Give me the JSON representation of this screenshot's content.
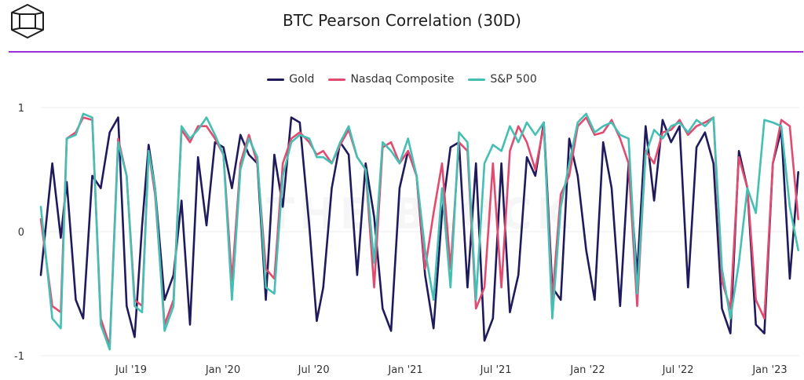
{
  "header": {
    "logo_icon": "cube-logo-icon",
    "title": "BTC Pearson Correlation (30D)",
    "rule_color": "#9b30d9"
  },
  "watermark": "THE BLOCK",
  "legend": [
    {
      "name": "Gold",
      "color": "#1f1a5c"
    },
    {
      "name": "Nasdaq Composite",
      "color": "#e34a6f"
    },
    {
      "name": "S&P 500",
      "color": "#45bfb3"
    }
  ],
  "chart_data": {
    "type": "line",
    "title": "BTC Pearson Correlation (30D)",
    "xlabel": "",
    "ylabel": "",
    "ylim": [
      -1,
      1
    ],
    "yticks": [
      {
        "value": 1,
        "label": "1"
      },
      {
        "value": 0,
        "label": "0"
      },
      {
        "value": -1,
        "label": "-1"
      }
    ],
    "xlim": [
      "2019-01-01",
      "2023-03-01"
    ],
    "xticks": [
      {
        "date": "2019-07-01",
        "label": "Jul '19"
      },
      {
        "date": "2020-01-01",
        "label": "Jan '20"
      },
      {
        "date": "2020-07-01",
        "label": "Jul '20"
      },
      {
        "date": "2021-01-01",
        "label": "Jan '21"
      },
      {
        "date": "2021-07-01",
        "label": "Jul '21"
      },
      {
        "date": "2022-01-01",
        "label": "Jan '22"
      },
      {
        "date": "2022-07-01",
        "label": "Jul '22"
      },
      {
        "date": "2023-01-01",
        "label": "Jan '23"
      }
    ],
    "grid": true,
    "legend_position": "top-center",
    "series": [
      {
        "name": "Gold",
        "color": "#1f1a5c",
        "x": [
          "2019-01-01",
          "2019-01-24",
          "2019-02-10",
          "2019-02-22",
          "2019-03-12",
          "2019-03-27",
          "2019-04-14",
          "2019-05-01",
          "2019-05-19",
          "2019-06-05",
          "2019-06-22",
          "2019-07-08",
          "2019-07-23",
          "2019-08-05",
          "2019-08-18",
          "2019-09-06",
          "2019-09-24",
          "2019-10-10",
          "2019-10-27",
          "2019-11-12",
          "2019-11-29",
          "2019-12-16",
          "2020-01-02",
          "2020-01-19",
          "2020-02-05",
          "2020-02-22",
          "2020-03-10",
          "2020-03-27",
          "2020-04-13",
          "2020-04-30",
          "2020-05-17",
          "2020-06-03",
          "2020-06-22",
          "2020-07-07",
          "2020-07-20",
          "2020-08-06",
          "2020-08-23",
          "2020-09-09",
          "2020-09-26",
          "2020-10-13",
          "2020-10-30",
          "2020-11-16",
          "2020-12-03",
          "2020-12-20",
          "2021-01-06",
          "2021-01-23",
          "2021-02-09",
          "2021-02-26",
          "2021-03-15",
          "2021-04-01",
          "2021-04-18",
          "2021-05-05",
          "2021-05-22",
          "2021-06-08",
          "2021-06-25",
          "2021-07-12",
          "2021-07-29",
          "2021-08-15",
          "2021-09-01",
          "2021-09-18",
          "2021-10-05",
          "2021-10-22",
          "2021-11-08",
          "2021-11-25",
          "2021-12-12",
          "2021-12-29",
          "2022-01-15",
          "2022-02-01",
          "2022-02-18",
          "2022-03-07",
          "2022-03-24",
          "2022-04-10",
          "2022-04-27",
          "2022-05-14",
          "2022-05-31",
          "2022-06-17",
          "2022-07-04",
          "2022-07-21",
          "2022-08-07",
          "2022-08-24",
          "2022-09-10",
          "2022-09-27",
          "2022-10-14",
          "2022-10-31",
          "2022-11-17",
          "2022-12-04",
          "2022-12-21",
          "2023-01-07",
          "2023-01-24",
          "2023-02-10",
          "2023-02-27"
        ],
        "y": [
          -0.35,
          0.55,
          -0.05,
          0.4,
          -0.55,
          -0.7,
          0.45,
          0.35,
          0.8,
          0.92,
          -0.6,
          -0.85,
          0.05,
          0.7,
          0.35,
          -0.55,
          -0.35,
          0.25,
          -0.75,
          0.6,
          0.05,
          0.72,
          0.68,
          0.35,
          0.78,
          0.62,
          0.55,
          -0.55,
          0.62,
          0.2,
          0.92,
          0.88,
          0.05,
          -0.72,
          -0.45,
          0.35,
          0.72,
          0.62,
          -0.35,
          0.55,
          0.12,
          -0.62,
          -0.8,
          0.35,
          0.65,
          0.45,
          -0.35,
          -0.78,
          0.15,
          0.68,
          0.72,
          -0.45,
          0.55,
          -0.88,
          -0.7,
          0.55,
          -0.65,
          -0.35,
          0.6,
          0.45,
          0.88,
          -0.45,
          -0.55,
          0.75,
          0.45,
          -0.15,
          -0.55,
          0.72,
          0.35,
          -0.6,
          0.55,
          -0.35,
          0.85,
          0.25,
          0.9,
          0.72,
          0.85,
          -0.45,
          0.68,
          0.8,
          0.55,
          -0.62,
          -0.82,
          0.65,
          0.35,
          -0.75,
          -0.82,
          0.55,
          0.82,
          -0.38,
          0.48
        ]
      },
      {
        "name": "Nasdaq Composite",
        "color": "#e34a6f",
        "x": [
          "2019-01-01",
          "2019-01-24",
          "2019-02-10",
          "2019-02-22",
          "2019-03-12",
          "2019-03-27",
          "2019-04-14",
          "2019-05-01",
          "2019-05-19",
          "2019-06-05",
          "2019-06-22",
          "2019-07-08",
          "2019-07-23",
          "2019-08-05",
          "2019-08-18",
          "2019-09-06",
          "2019-09-24",
          "2019-10-10",
          "2019-10-27",
          "2019-11-12",
          "2019-11-29",
          "2019-12-16",
          "2020-01-02",
          "2020-01-19",
          "2020-02-05",
          "2020-02-22",
          "2020-03-10",
          "2020-03-27",
          "2020-04-13",
          "2020-04-30",
          "2020-05-17",
          "2020-06-03",
          "2020-06-22",
          "2020-07-07",
          "2020-07-20",
          "2020-08-06",
          "2020-08-23",
          "2020-09-09",
          "2020-09-26",
          "2020-10-13",
          "2020-10-30",
          "2020-11-16",
          "2020-12-03",
          "2020-12-20",
          "2021-01-06",
          "2021-01-23",
          "2021-02-09",
          "2021-02-26",
          "2021-03-15",
          "2021-04-01",
          "2021-04-18",
          "2021-05-05",
          "2021-05-22",
          "2021-06-08",
          "2021-06-25",
          "2021-07-12",
          "2021-07-29",
          "2021-08-15",
          "2021-09-01",
          "2021-09-18",
          "2021-10-05",
          "2021-10-22",
          "2021-11-08",
          "2021-11-25",
          "2021-12-12",
          "2021-12-29",
          "2022-01-15",
          "2022-02-01",
          "2022-02-18",
          "2022-03-07",
          "2022-03-24",
          "2022-04-10",
          "2022-04-27",
          "2022-05-14",
          "2022-05-31",
          "2022-06-17",
          "2022-07-04",
          "2022-07-21",
          "2022-08-07",
          "2022-08-24",
          "2022-09-10",
          "2022-09-27",
          "2022-10-14",
          "2022-10-31",
          "2022-11-17",
          "2022-12-04",
          "2022-12-21",
          "2023-01-07",
          "2023-01-24",
          "2023-02-10",
          "2023-02-27"
        ],
        "y": [
          0.1,
          -0.6,
          -0.65,
          0.75,
          0.8,
          0.92,
          0.9,
          -0.7,
          -0.92,
          0.75,
          0.45,
          -0.55,
          -0.6,
          0.65,
          0.3,
          -0.75,
          -0.55,
          0.82,
          0.72,
          0.85,
          0.85,
          0.75,
          0.62,
          -0.4,
          0.55,
          0.78,
          0.55,
          -0.3,
          -0.38,
          0.55,
          0.75,
          0.8,
          0.72,
          0.62,
          0.65,
          0.55,
          0.7,
          0.82,
          0.6,
          0.5,
          -0.45,
          0.68,
          0.72,
          0.55,
          0.65,
          0.45,
          -0.3,
          0.15,
          0.55,
          -0.3,
          0.72,
          0.65,
          -0.62,
          -0.45,
          0.55,
          -0.45,
          0.65,
          0.85,
          0.72,
          0.5,
          0.85,
          -0.55,
          0.3,
          0.45,
          0.85,
          0.92,
          0.78,
          0.8,
          0.9,
          0.75,
          0.55,
          -0.6,
          0.65,
          0.55,
          0.8,
          0.82,
          0.9,
          0.78,
          0.85,
          0.88,
          0.92,
          -0.4,
          -0.62,
          0.6,
          0.35,
          -0.55,
          -0.7,
          0.55,
          0.9,
          0.85,
          0.1
        ]
      },
      {
        "name": "S&P 500",
        "color": "#45bfb3",
        "x": [
          "2019-01-01",
          "2019-01-24",
          "2019-02-10",
          "2019-02-22",
          "2019-03-12",
          "2019-03-27",
          "2019-04-14",
          "2019-05-01",
          "2019-05-19",
          "2019-06-05",
          "2019-06-22",
          "2019-07-08",
          "2019-07-23",
          "2019-08-05",
          "2019-08-18",
          "2019-09-06",
          "2019-09-24",
          "2019-10-10",
          "2019-10-27",
          "2019-11-12",
          "2019-11-29",
          "2019-12-16",
          "2020-01-02",
          "2020-01-19",
          "2020-02-05",
          "2020-02-22",
          "2020-03-10",
          "2020-03-27",
          "2020-04-13",
          "2020-04-30",
          "2020-05-17",
          "2020-06-03",
          "2020-06-22",
          "2020-07-07",
          "2020-07-20",
          "2020-08-06",
          "2020-08-23",
          "2020-09-09",
          "2020-09-26",
          "2020-10-13",
          "2020-10-30",
          "2020-11-16",
          "2020-12-03",
          "2020-12-20",
          "2021-01-06",
          "2021-01-23",
          "2021-02-09",
          "2021-02-26",
          "2021-03-15",
          "2021-04-01",
          "2021-04-18",
          "2021-05-05",
          "2021-05-22",
          "2021-06-08",
          "2021-06-25",
          "2021-07-12",
          "2021-07-29",
          "2021-08-15",
          "2021-09-01",
          "2021-09-18",
          "2021-10-05",
          "2021-10-22",
          "2021-11-08",
          "2021-11-25",
          "2021-12-12",
          "2021-12-29",
          "2022-01-15",
          "2022-02-01",
          "2022-02-18",
          "2022-03-07",
          "2022-03-24",
          "2022-04-10",
          "2022-04-27",
          "2022-05-14",
          "2022-05-31",
          "2022-06-17",
          "2022-07-04",
          "2022-07-21",
          "2022-08-07",
          "2022-08-24",
          "2022-09-10",
          "2022-09-27",
          "2022-10-14",
          "2022-10-31",
          "2022-11-17",
          "2022-12-04",
          "2022-12-21",
          "2023-01-07",
          "2023-01-24",
          "2023-02-10",
          "2023-02-27"
        ],
        "y": [
          0.2,
          -0.7,
          -0.78,
          0.75,
          0.78,
          0.95,
          0.92,
          -0.75,
          -0.95,
          0.72,
          0.45,
          -0.6,
          -0.65,
          0.65,
          0.35,
          -0.8,
          -0.6,
          0.85,
          0.75,
          0.82,
          0.92,
          0.78,
          0.62,
          -0.55,
          0.5,
          0.75,
          0.6,
          -0.45,
          -0.5,
          0.45,
          0.72,
          0.78,
          0.75,
          0.6,
          0.6,
          0.55,
          0.72,
          0.85,
          0.6,
          0.5,
          -0.25,
          0.72,
          0.65,
          0.55,
          0.75,
          0.45,
          -0.15,
          -0.55,
          0.35,
          -0.45,
          0.8,
          0.72,
          -0.55,
          0.55,
          0.7,
          0.65,
          0.85,
          0.72,
          0.88,
          0.78,
          0.88,
          -0.7,
          0.2,
          0.55,
          0.88,
          0.95,
          0.8,
          0.85,
          0.88,
          0.78,
          0.75,
          -0.5,
          0.62,
          0.82,
          0.75,
          0.85,
          0.88,
          0.8,
          0.9,
          0.85,
          0.92,
          -0.3,
          -0.7,
          -0.25,
          0.35,
          0.15,
          0.9,
          0.88,
          0.85,
          0.2,
          -0.15
        ]
      }
    ]
  }
}
